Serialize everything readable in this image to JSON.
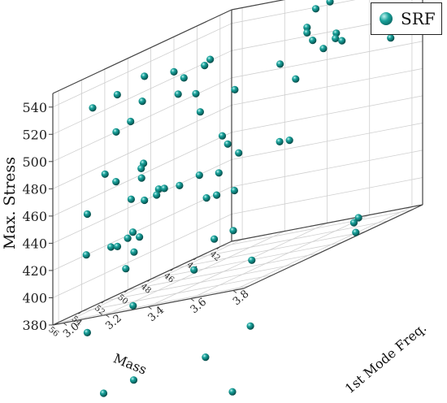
{
  "chart_data": {
    "type": "scatter3d",
    "xlabel": "Mass",
    "ylabel": "1st Mode Freq.",
    "zlabel": "Max. Stress",
    "xticks": [
      "42",
      "44",
      "46",
      "48",
      "50",
      "52",
      "54",
      "56"
    ],
    "yticks": [
      "3.0",
      "3.2",
      "3.4",
      "3.6",
      "3.8"
    ],
    "zticks": [
      "380",
      "400",
      "420",
      "440",
      "460",
      "480",
      "500",
      "520",
      "540"
    ],
    "xlim": [
      41,
      56.5
    ],
    "ylim": [
      2.95,
      3.85
    ],
    "zlim": [
      380,
      550
    ],
    "grid": true,
    "legend_position": "top-right",
    "series": [
      {
        "name": "SRF",
        "color": "#0e8b86",
        "points": [
          [
            44.8,
            3.62,
            551
          ],
          [
            45.3,
            3.58,
            549
          ],
          [
            49.6,
            3.29,
            533
          ],
          [
            51.5,
            3.11,
            538
          ],
          [
            49.3,
            3.3,
            536
          ],
          [
            50.6,
            3.2,
            535
          ],
          [
            52.2,
            3.02,
            530
          ],
          [
            45.5,
            3.55,
            537
          ],
          [
            45.5,
            3.55,
            533
          ],
          [
            50.1,
            3.22,
            528
          ],
          [
            53.6,
            2.98,
            527
          ],
          [
            44.8,
            3.65,
            527
          ],
          [
            45.2,
            3.56,
            526
          ],
          [
            44.7,
            3.64,
            523
          ],
          [
            44.5,
            3.66,
            520
          ],
          [
            51.5,
            3.1,
            520
          ],
          [
            45.0,
            3.6,
            518
          ],
          [
            42.1,
            3.8,
            515
          ],
          [
            49.8,
            3.26,
            514
          ],
          [
            42.3,
            3.77,
            510
          ],
          [
            50.6,
            3.22,
            518
          ],
          [
            46.0,
            3.45,
            515
          ],
          [
            47.9,
            3.34,
            507
          ],
          [
            51.6,
            3.05,
            507
          ],
          [
            52.3,
            3.02,
            503
          ],
          [
            45.2,
            3.48,
            500
          ],
          [
            48.5,
            3.21,
            497
          ],
          [
            48.8,
            3.33,
            477
          ],
          [
            51.4,
            3.1,
            474
          ],
          [
            52.9,
            3.0,
            475
          ],
          [
            51.6,
            3.1,
            471
          ],
          [
            48.7,
            3.35,
            470
          ],
          [
            48.3,
            3.38,
            461
          ],
          [
            52.5,
            3.03,
            467
          ],
          [
            46.1,
            3.5,
            458
          ],
          [
            46.4,
            3.47,
            459
          ],
          [
            49.5,
            3.26,
            453
          ],
          [
            51.2,
            3.08,
            463
          ],
          [
            52.1,
            3.08,
            451
          ],
          [
            51.0,
            3.15,
            452
          ],
          [
            50.7,
            3.16,
            451
          ],
          [
            50.3,
            3.21,
            450
          ],
          [
            51.0,
            3.14,
            448
          ],
          [
            51.5,
            3.11,
            447
          ],
          [
            53.7,
            2.96,
            450
          ],
          [
            49.1,
            3.33,
            451
          ],
          [
            49.1,
            3.32,
            435
          ],
          [
            48.3,
            3.36,
            434
          ],
          [
            49.8,
            3.31,
            436
          ],
          [
            51.4,
            3.05,
            425
          ],
          [
            51.3,
            3.02,
            421
          ],
          [
            51.2,
            3.07,
            420
          ],
          [
            52.2,
            2.99,
            419
          ],
          [
            52.0,
            3.01,
            418
          ],
          [
            53.6,
            2.95,
            420
          ],
          [
            51.3,
            3.05,
            410
          ],
          [
            48.4,
            3.36,
            405
          ],
          [
            49.5,
            3.33,
            404
          ],
          [
            52.2,
            3.06,
            401
          ],
          [
            43.8,
            3.7,
            386
          ],
          [
            44.2,
            3.7,
            384
          ],
          [
            44.4,
            3.72,
            377
          ],
          [
            49.0,
            3.48,
            382
          ],
          [
            50.7,
            3.3,
            387
          ],
          [
            52.3,
            3.1,
            373
          ],
          [
            53.7,
            2.96,
            363
          ],
          [
            48.2,
            3.43,
            332
          ],
          [
            49.7,
            3.3,
            319
          ],
          [
            51.7,
            3.07,
            317
          ],
          [
            53.2,
            3.01,
            315
          ],
          [
            56.2,
            3.78,
            305
          ]
        ]
      }
    ]
  }
}
